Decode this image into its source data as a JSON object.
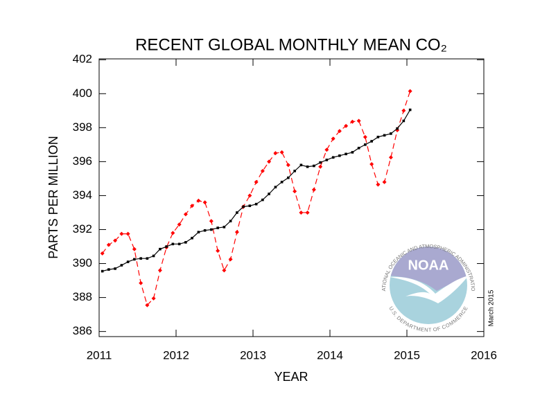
{
  "chart_data": {
    "type": "line",
    "title": "RECENT GLOBAL MONTHLY MEAN CO₂",
    "xlabel": "YEAR",
    "ylabel": "PARTS PER MILLION",
    "annotation": "March 2015",
    "logo": {
      "text": "NOAA",
      "top_text": "NATIONAL OCEANIC AND ATMOSPHERIC ADMINISTRATION",
      "bottom_text": "U.S. DEPARTMENT OF COMMERCE"
    },
    "x": [
      2011.042,
      2011.125,
      2011.208,
      2011.292,
      2011.375,
      2011.458,
      2011.542,
      2011.625,
      2011.708,
      2011.792,
      2011.875,
      2011.958,
      2012.042,
      2012.125,
      2012.208,
      2012.292,
      2012.375,
      2012.458,
      2012.542,
      2012.625,
      2012.708,
      2012.792,
      2012.875,
      2012.958,
      2013.042,
      2013.125,
      2013.208,
      2013.292,
      2013.375,
      2013.458,
      2013.542,
      2013.625,
      2013.708,
      2013.792,
      2013.875,
      2013.958,
      2014.042,
      2014.125,
      2014.208,
      2014.292,
      2014.375,
      2014.458,
      2014.542,
      2014.625,
      2014.708,
      2014.792,
      2014.875,
      2014.958,
      2015.042
    ],
    "series": [
      {
        "color": "#ff0000",
        "style": "dashed",
        "marker": "diamond",
        "values": [
          390.6,
          391.1,
          391.35,
          391.75,
          391.75,
          390.85,
          388.85,
          387.55,
          387.95,
          389.6,
          390.95,
          391.8,
          392.3,
          392.9,
          393.4,
          393.7,
          393.6,
          392.5,
          390.75,
          389.6,
          390.25,
          391.85,
          393.35,
          394.0,
          394.8,
          395.45,
          396.0,
          396.5,
          396.55,
          395.8,
          394.25,
          393.0,
          393.0,
          394.35,
          395.7,
          396.7,
          397.35,
          397.8,
          398.1,
          398.35,
          398.4,
          397.45,
          395.85,
          394.65,
          394.8,
          396.25,
          397.85,
          399.0,
          400.15
        ]
      },
      {
        "color": "#000000",
        "style": "solid",
        "marker": "square",
        "values": [
          389.55,
          389.65,
          389.7,
          389.9,
          390.1,
          390.25,
          390.3,
          390.3,
          390.45,
          390.85,
          391.0,
          391.15,
          391.15,
          391.25,
          391.5,
          391.85,
          391.95,
          392.0,
          392.1,
          392.15,
          392.5,
          393.0,
          393.35,
          393.4,
          393.5,
          393.75,
          394.1,
          394.5,
          394.8,
          395.05,
          395.45,
          395.8,
          395.7,
          395.75,
          395.95,
          396.1,
          396.25,
          396.35,
          396.45,
          396.55,
          396.8,
          397.0,
          397.2,
          397.45,
          397.55,
          397.65,
          397.95,
          398.4,
          399.05
        ]
      }
    ],
    "xlim": [
      2011,
      2016
    ],
    "xticks": [
      2011,
      2012,
      2013,
      2014,
      2015,
      2016
    ],
    "ylim": [
      385.7,
      402.05
    ],
    "yticks": [
      386,
      388,
      390,
      392,
      394,
      396,
      398,
      400,
      402
    ],
    "grid": false
  }
}
